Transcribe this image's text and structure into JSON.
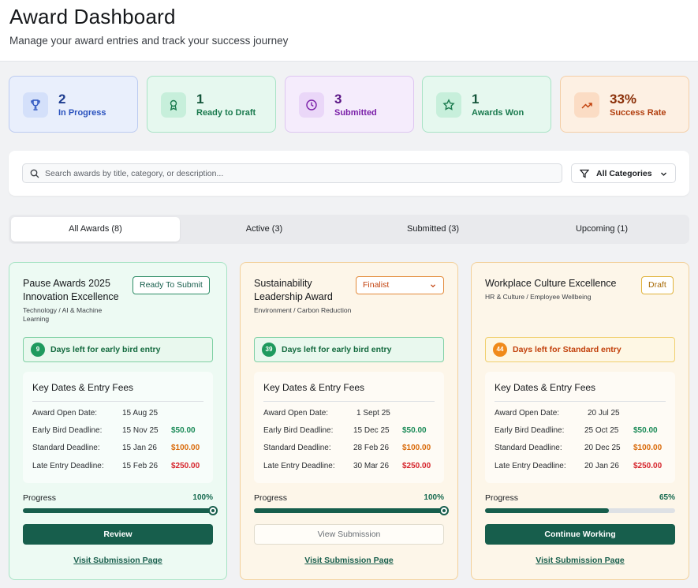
{
  "header": {
    "title": "Award Dashboard",
    "subtitle": "Manage your award entries and track your success journey"
  },
  "stats": [
    {
      "value": "2",
      "label": "In Progress",
      "icon": "trophy-icon",
      "color": "#2a52be"
    },
    {
      "value": "1",
      "label": "Ready to Draft",
      "icon": "award-ribbon-icon",
      "color": "#1a7a4e"
    },
    {
      "value": "3",
      "label": "Submitted",
      "icon": "clock-icon",
      "color": "#7a1fa8"
    },
    {
      "value": "1",
      "label": "Awards Won",
      "icon": "star-icon",
      "color": "#1a7a4e"
    },
    {
      "value": "33%",
      "label": "Success Rate",
      "icon": "trending-up-icon",
      "color": "#b24010"
    }
  ],
  "search": {
    "placeholder": "Search awards by title, category, or description...",
    "category_label": "All Categories"
  },
  "tabs": [
    {
      "label": "All Awards (8)",
      "active": true
    },
    {
      "label": "Active (3)",
      "active": false
    },
    {
      "label": "Submitted (3)",
      "active": false
    },
    {
      "label": "Upcoming (1)",
      "active": false
    }
  ],
  "cards": [
    {
      "title": "Pause Awards 2025 Innovation Excellence",
      "category": "Technology / AI & Machine Learning",
      "badge": "Ready To Submit",
      "days_count": "9",
      "days_text": "Days left for early bird entry",
      "key_dates_title": "Key Dates & Entry Fees",
      "rows": [
        {
          "label": "Award Open Date:",
          "date": "15 Aug 25",
          "fee": ""
        },
        {
          "label": "Early Bird Deadline:",
          "date": "15 Nov 25",
          "fee": "$50.00"
        },
        {
          "label": "Standard Deadline:",
          "date": "15 Jan 26",
          "fee": "$100.00"
        },
        {
          "label": "Late Entry Deadline:",
          "date": "15 Feb 26",
          "fee": "$250.00"
        }
      ],
      "progress_label": "Progress",
      "progress_value": "100%",
      "progress": 1.0,
      "action": "Review",
      "link": "Visit Submission Page"
    },
    {
      "title": "Sustainability Leadership Award",
      "category": "Environment / Carbon Reduction",
      "badge": "Finalist",
      "days_count": "39",
      "days_text": "Days left for early bird entry",
      "key_dates_title": "Key Dates & Entry Fees",
      "rows": [
        {
          "label": "Award Open Date:",
          "date": "1 Sept 25",
          "fee": ""
        },
        {
          "label": "Early Bird Deadline:",
          "date": "15 Dec 25",
          "fee": "$50.00"
        },
        {
          "label": "Standard Deadline:",
          "date": "28 Feb 26",
          "fee": "$100.00"
        },
        {
          "label": "Late Entry Deadline:",
          "date": "30 Mar 26",
          "fee": "$250.00"
        }
      ],
      "progress_label": "Progress",
      "progress_value": "100%",
      "progress": 1.0,
      "action": "View Submission",
      "link": "Visit Submission Page"
    },
    {
      "title": "Workplace Culture Excellence",
      "category": "HR & Culture / Employee Wellbeing",
      "badge": "Draft",
      "days_count": "44",
      "days_text": "Days left for Standard entry",
      "key_dates_title": "Key Dates & Entry Fees",
      "rows": [
        {
          "label": "Award Open Date:",
          "date": "20 Jul 25",
          "fee": ""
        },
        {
          "label": "Early Bird Deadline:",
          "date": "25 Oct 25",
          "fee": "$50.00"
        },
        {
          "label": "Standard Deadline:",
          "date": "20 Dec 25",
          "fee": "$100.00"
        },
        {
          "label": "Late Entry Deadline:",
          "date": "20 Jan 26",
          "fee": "$250.00"
        }
      ],
      "progress_label": "Progress",
      "progress_value": "65%",
      "progress": 0.65,
      "action": "Continue Working",
      "link": "Visit Submission Page"
    }
  ]
}
